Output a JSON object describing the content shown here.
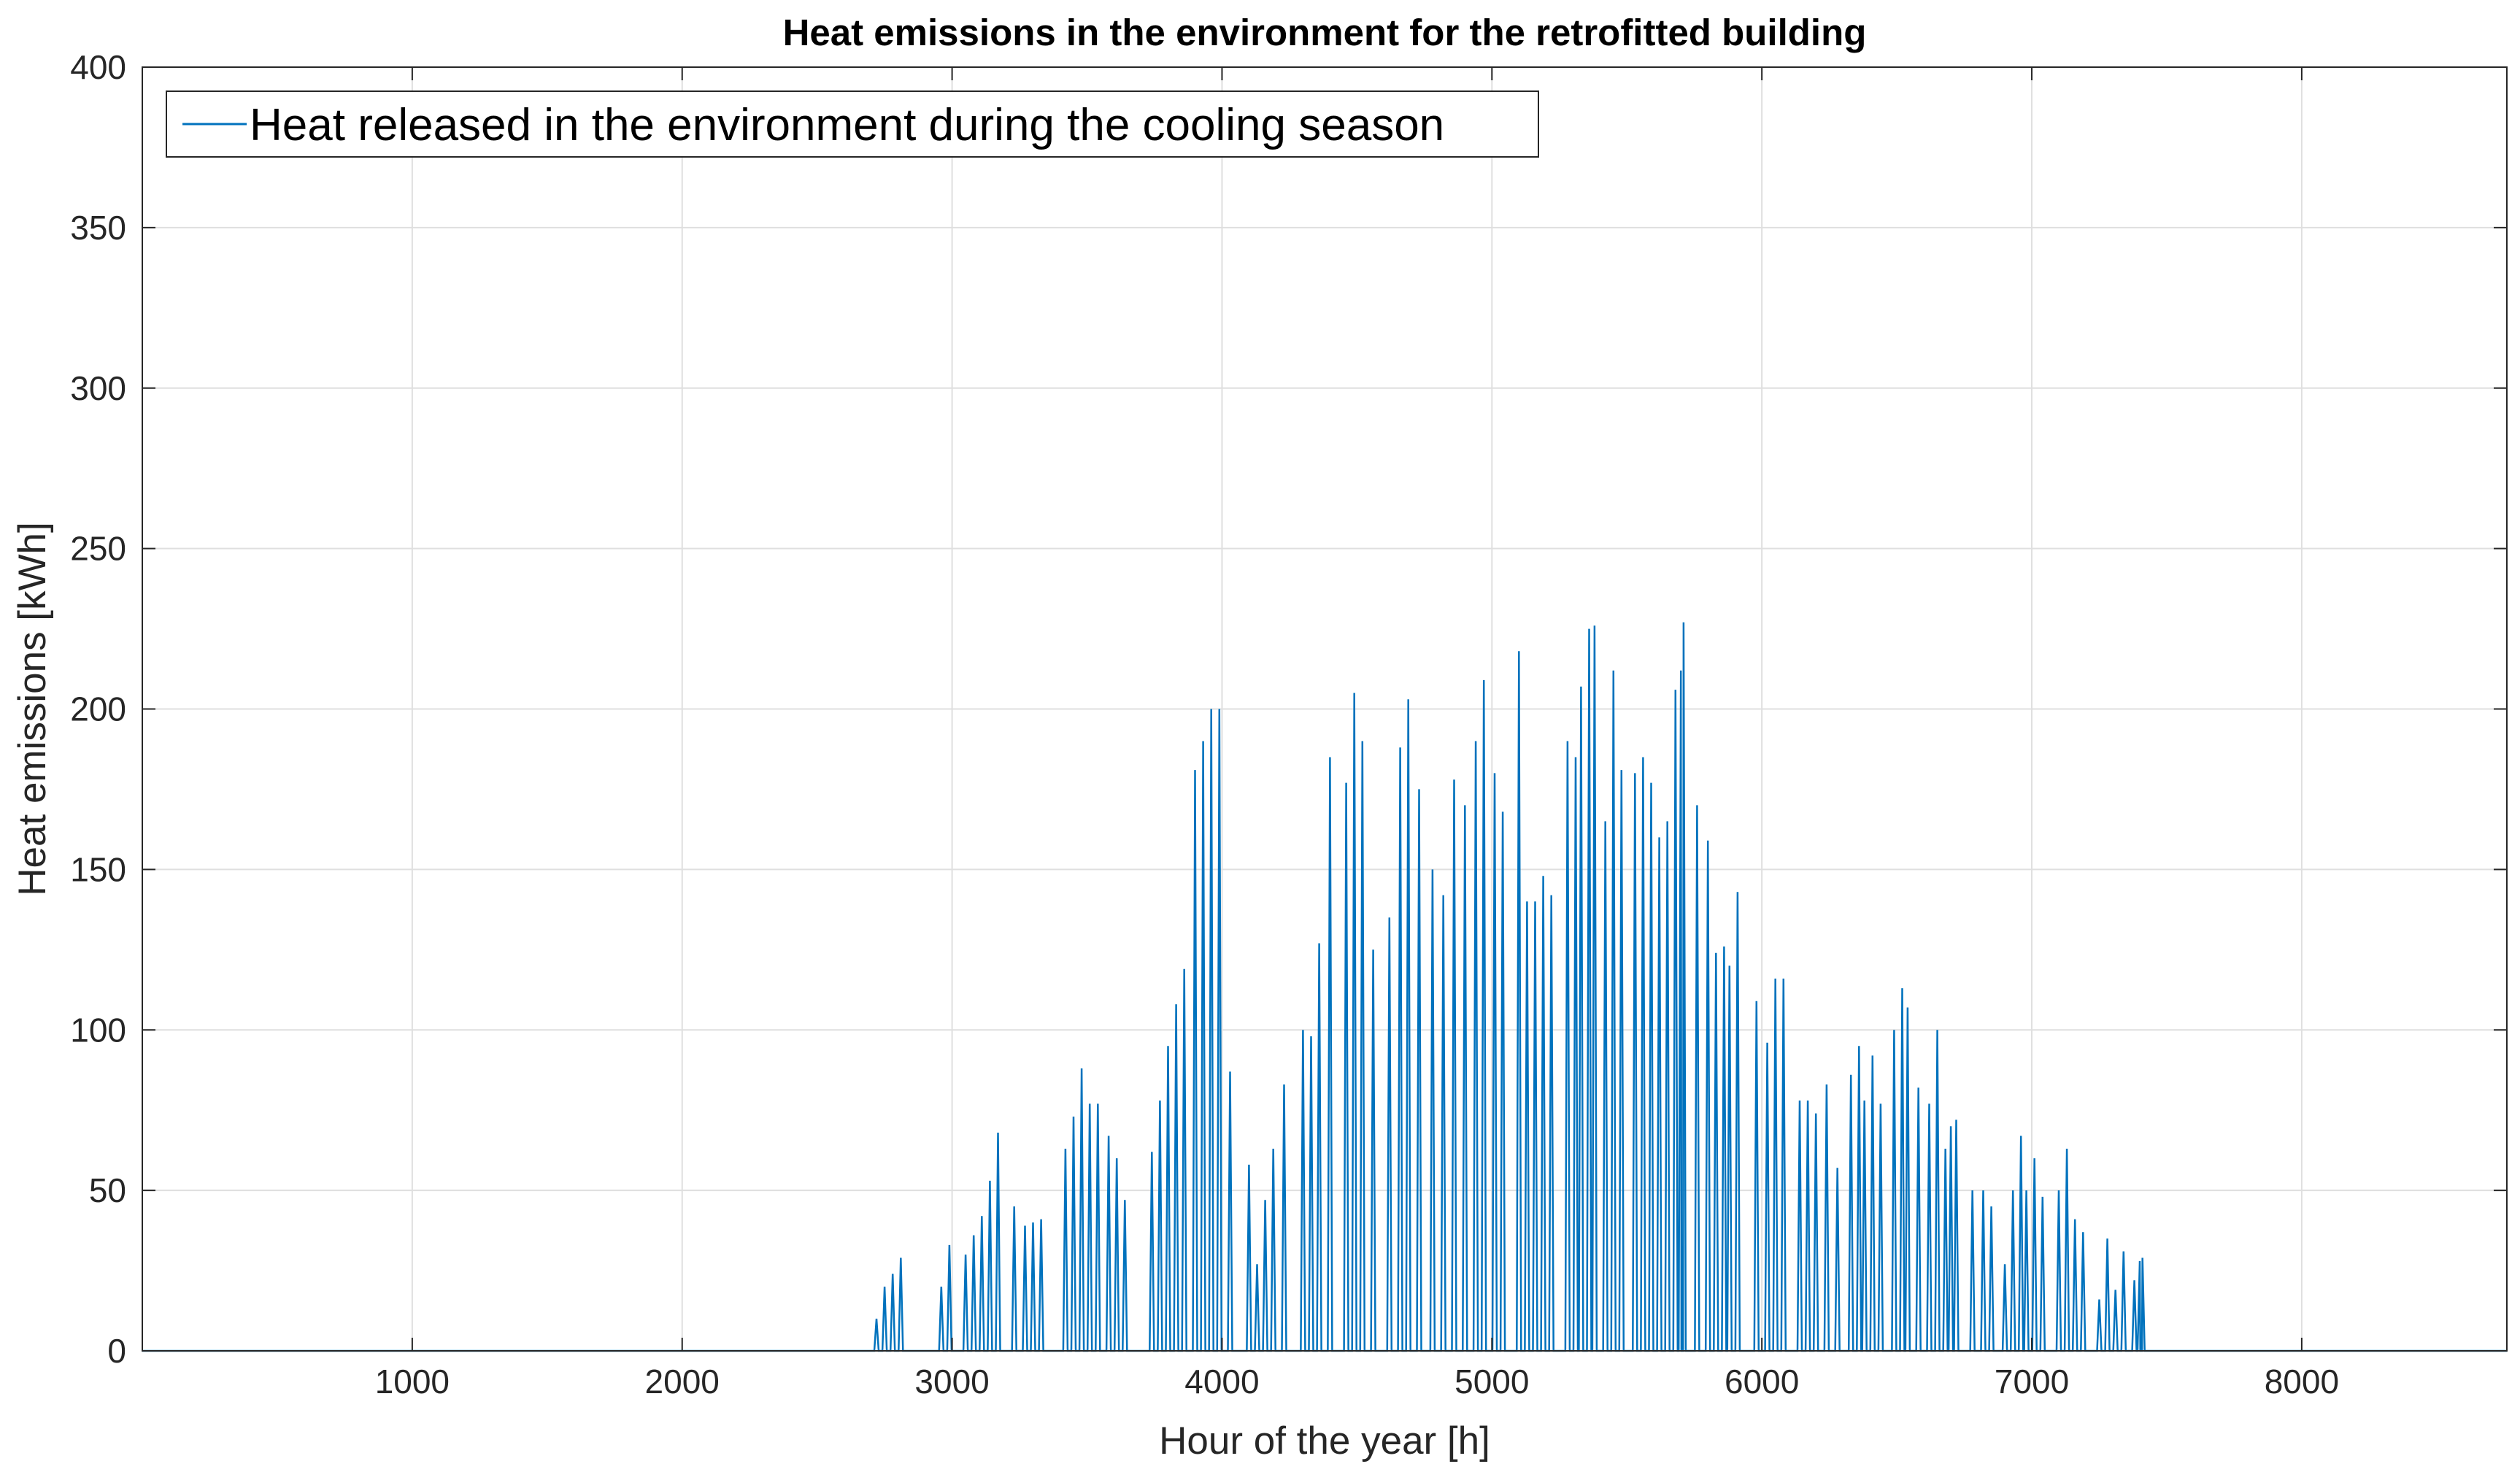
{
  "chart_data": {
    "type": "line",
    "title": "Heat emissions in the environment for the retrofitted building",
    "xlabel": "Hour of the year [h]",
    "ylabel": "Heat emissions [kWh]",
    "xlim": [
      0,
      8760
    ],
    "ylim": [
      0,
      400
    ],
    "xticks": [
      1000,
      2000,
      3000,
      4000,
      5000,
      6000,
      7000,
      8000
    ],
    "xtick_labels": [
      "1000",
      "2000",
      "3000",
      "4000",
      "5000",
      "6000",
      "7000",
      "8000"
    ],
    "yticks": [
      0,
      50,
      100,
      150,
      200,
      250,
      300,
      350,
      400
    ],
    "ytick_labels": [
      "0",
      "50",
      "100",
      "150",
      "200",
      "250",
      "300",
      "350",
      "400"
    ],
    "grid": true,
    "legend_position": "top-left",
    "series": [
      {
        "name": "Heat released in the environment during the cooling season",
        "color": "#0072BD",
        "peaks": [
          [
            0,
            0
          ],
          [
            2720,
            10
          ],
          [
            2750,
            20
          ],
          [
            2780,
            24
          ],
          [
            2810,
            29
          ],
          [
            2960,
            20
          ],
          [
            2990,
            33
          ],
          [
            3050,
            30
          ],
          [
            3080,
            36
          ],
          [
            3110,
            42
          ],
          [
            3140,
            53
          ],
          [
            3170,
            68
          ],
          [
            3230,
            45
          ],
          [
            3270,
            39
          ],
          [
            3300,
            40
          ],
          [
            3330,
            41
          ],
          [
            3420,
            63
          ],
          [
            3450,
            73
          ],
          [
            3480,
            88
          ],
          [
            3510,
            77
          ],
          [
            3540,
            77
          ],
          [
            3580,
            67
          ],
          [
            3610,
            60
          ],
          [
            3640,
            47
          ],
          [
            3740,
            62
          ],
          [
            3770,
            78
          ],
          [
            3800,
            95
          ],
          [
            3830,
            108
          ],
          [
            3860,
            119
          ],
          [
            3900,
            181
          ],
          [
            3930,
            190
          ],
          [
            3960,
            200
          ],
          [
            3990,
            200
          ],
          [
            4030,
            87
          ],
          [
            4100,
            58
          ],
          [
            4130,
            27
          ],
          [
            4160,
            47
          ],
          [
            4190,
            63
          ],
          [
            4230,
            83
          ],
          [
            4300,
            100
          ],
          [
            4330,
            98
          ],
          [
            4360,
            127
          ],
          [
            4400,
            185
          ],
          [
            4460,
            177
          ],
          [
            4490,
            205
          ],
          [
            4520,
            190
          ],
          [
            4560,
            125
          ],
          [
            4620,
            135
          ],
          [
            4660,
            188
          ],
          [
            4690,
            203
          ],
          [
            4730,
            175
          ],
          [
            4780,
            150
          ],
          [
            4820,
            142
          ],
          [
            4860,
            178
          ],
          [
            4900,
            170
          ],
          [
            4940,
            190
          ],
          [
            4970,
            209
          ],
          [
            5010,
            180
          ],
          [
            5040,
            168
          ],
          [
            5100,
            218
          ],
          [
            5130,
            140
          ],
          [
            5160,
            140
          ],
          [
            5190,
            148
          ],
          [
            5220,
            142
          ],
          [
            5280,
            190
          ],
          [
            5310,
            185
          ],
          [
            5330,
            207
          ],
          [
            5360,
            225
          ],
          [
            5380,
            226
          ],
          [
            5420,
            165
          ],
          [
            5450,
            212
          ],
          [
            5480,
            181
          ],
          [
            5530,
            180
          ],
          [
            5560,
            185
          ],
          [
            5590,
            177
          ],
          [
            5620,
            160
          ],
          [
            5650,
            165
          ],
          [
            5680,
            206
          ],
          [
            5700,
            212
          ],
          [
            5710,
            227
          ],
          [
            5760,
            170
          ],
          [
            5800,
            159
          ],
          [
            5830,
            124
          ],
          [
            5860,
            126
          ],
          [
            5880,
            120
          ],
          [
            5910,
            143
          ],
          [
            5980,
            109
          ],
          [
            6020,
            96
          ],
          [
            6050,
            116
          ],
          [
            6080,
            116
          ],
          [
            6140,
            78
          ],
          [
            6170,
            78
          ],
          [
            6200,
            74
          ],
          [
            6240,
            83
          ],
          [
            6280,
            57
          ],
          [
            6330,
            86
          ],
          [
            6360,
            95
          ],
          [
            6380,
            78
          ],
          [
            6410,
            92
          ],
          [
            6440,
            77
          ],
          [
            6490,
            100
          ],
          [
            6520,
            113
          ],
          [
            6540,
            107
          ],
          [
            6580,
            82
          ],
          [
            6620,
            77
          ],
          [
            6650,
            100
          ],
          [
            6680,
            63
          ],
          [
            6700,
            70
          ],
          [
            6720,
            72
          ],
          [
            6780,
            50
          ],
          [
            6820,
            50
          ],
          [
            6850,
            45
          ],
          [
            6900,
            27
          ],
          [
            6930,
            50
          ],
          [
            6960,
            67
          ],
          [
            6980,
            50
          ],
          [
            7010,
            60
          ],
          [
            7040,
            48
          ],
          [
            7100,
            50
          ],
          [
            7130,
            63
          ],
          [
            7160,
            41
          ],
          [
            7190,
            37
          ],
          [
            7250,
            16
          ],
          [
            7280,
            35
          ],
          [
            7310,
            19
          ],
          [
            7340,
            31
          ],
          [
            7380,
            22
          ],
          [
            7400,
            28
          ],
          [
            7410,
            29
          ],
          [
            8760,
            0
          ]
        ]
      }
    ]
  }
}
